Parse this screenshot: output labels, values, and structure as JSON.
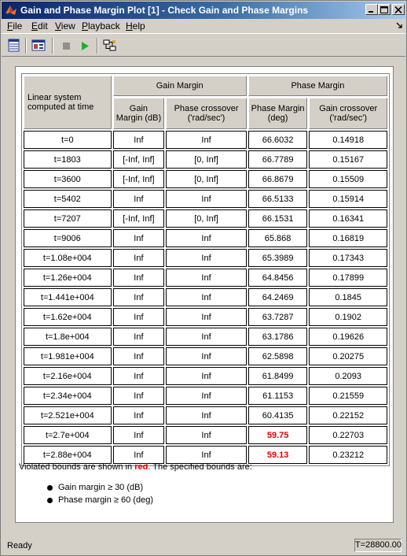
{
  "window": {
    "title": "Gain and Phase Margin Plot [1] - Check Gain and Phase Margins"
  },
  "menu": [
    {
      "label": "File",
      "accel": "F"
    },
    {
      "label": "Edit",
      "accel": "E"
    },
    {
      "label": "View",
      "accel": "V"
    },
    {
      "label": "Playback",
      "accel": "P"
    },
    {
      "label": "Help",
      "accel": "H"
    }
  ],
  "toolbar": {
    "icons": [
      "show-table-icon",
      "show-plot-icon",
      "stop-icon",
      "play-icon",
      "linearize-icon"
    ]
  },
  "table": {
    "corner_header": "Linear system computed at time",
    "group_headers": [
      "Gain Margin",
      "Phase Margin"
    ],
    "sub_headers": [
      "Gain Margin (dB)",
      "Phase crossover ('rad/sec')",
      "Phase Margin (deg)",
      "Gain crossover ('rad/sec')"
    ],
    "rows": [
      {
        "time": "t=0",
        "gm": "Inf",
        "pcross": "Inf",
        "pm": "66.6032",
        "gcross": "0.14918",
        "pm_violated": false
      },
      {
        "time": "t=1803",
        "gm": "[-Inf, Inf]",
        "pcross": "[0, Inf]",
        "pm": "66.7789",
        "gcross": "0.15167",
        "pm_violated": false
      },
      {
        "time": "t=3600",
        "gm": "[-Inf, Inf]",
        "pcross": "[0, Inf]",
        "pm": "66.8679",
        "gcross": "0.15509",
        "pm_violated": false
      },
      {
        "time": "t=5402",
        "gm": "Inf",
        "pcross": "Inf",
        "pm": "66.5133",
        "gcross": "0.15914",
        "pm_violated": false
      },
      {
        "time": "t=7207",
        "gm": "[-Inf, Inf]",
        "pcross": "[0, Inf]",
        "pm": "66.1531",
        "gcross": "0.16341",
        "pm_violated": false
      },
      {
        "time": "t=9006",
        "gm": "Inf",
        "pcross": "Inf",
        "pm": "65.868",
        "gcross": "0.16819",
        "pm_violated": false
      },
      {
        "time": "t=1.08e+004",
        "gm": "Inf",
        "pcross": "Inf",
        "pm": "65.3989",
        "gcross": "0.17343",
        "pm_violated": false
      },
      {
        "time": "t=1.26e+004",
        "gm": "Inf",
        "pcross": "Inf",
        "pm": "64.8456",
        "gcross": "0.17899",
        "pm_violated": false
      },
      {
        "time": "t=1.441e+004",
        "gm": "Inf",
        "pcross": "Inf",
        "pm": "64.2469",
        "gcross": "0.1845",
        "pm_violated": false
      },
      {
        "time": "t=1.62e+004",
        "gm": "Inf",
        "pcross": "Inf",
        "pm": "63.7287",
        "gcross": "0.1902",
        "pm_violated": false
      },
      {
        "time": "t=1.8e+004",
        "gm": "Inf",
        "pcross": "Inf",
        "pm": "63.1786",
        "gcross": "0.19626",
        "pm_violated": false
      },
      {
        "time": "t=1.981e+004",
        "gm": "Inf",
        "pcross": "Inf",
        "pm": "62.5898",
        "gcross": "0.20275",
        "pm_violated": false
      },
      {
        "time": "t=2.16e+004",
        "gm": "Inf",
        "pcross": "Inf",
        "pm": "61.8499",
        "gcross": "0.2093",
        "pm_violated": false
      },
      {
        "time": "t=2.34e+004",
        "gm": "Inf",
        "pcross": "Inf",
        "pm": "61.1153",
        "gcross": "0.21559",
        "pm_violated": false
      },
      {
        "time": "t=2.521e+004",
        "gm": "Inf",
        "pcross": "Inf",
        "pm": "60.4135",
        "gcross": "0.22152",
        "pm_violated": false
      },
      {
        "time": "t=2.7e+004",
        "gm": "Inf",
        "pcross": "Inf",
        "pm": "59.75",
        "gcross": "0.22703",
        "pm_violated": true
      },
      {
        "time": "t=2.88e+004",
        "gm": "Inf",
        "pcross": "Inf",
        "pm": "59.13",
        "gcross": "0.23212",
        "pm_violated": true
      }
    ]
  },
  "note": {
    "prefix": "Violated bounds are shown in ",
    "red_word": "red",
    "suffix": ". The specified bounds are:"
  },
  "bounds": [
    "Gain margin ≥ 30 (dB)",
    "Phase margin ≥ 60 (deg)"
  ],
  "status": {
    "text": "Ready",
    "sim_time": "T=28800.00"
  },
  "colors": {
    "violation": "#e00000",
    "titlebar_start": "#0a246a",
    "titlebar_end": "#a6caf0"
  }
}
